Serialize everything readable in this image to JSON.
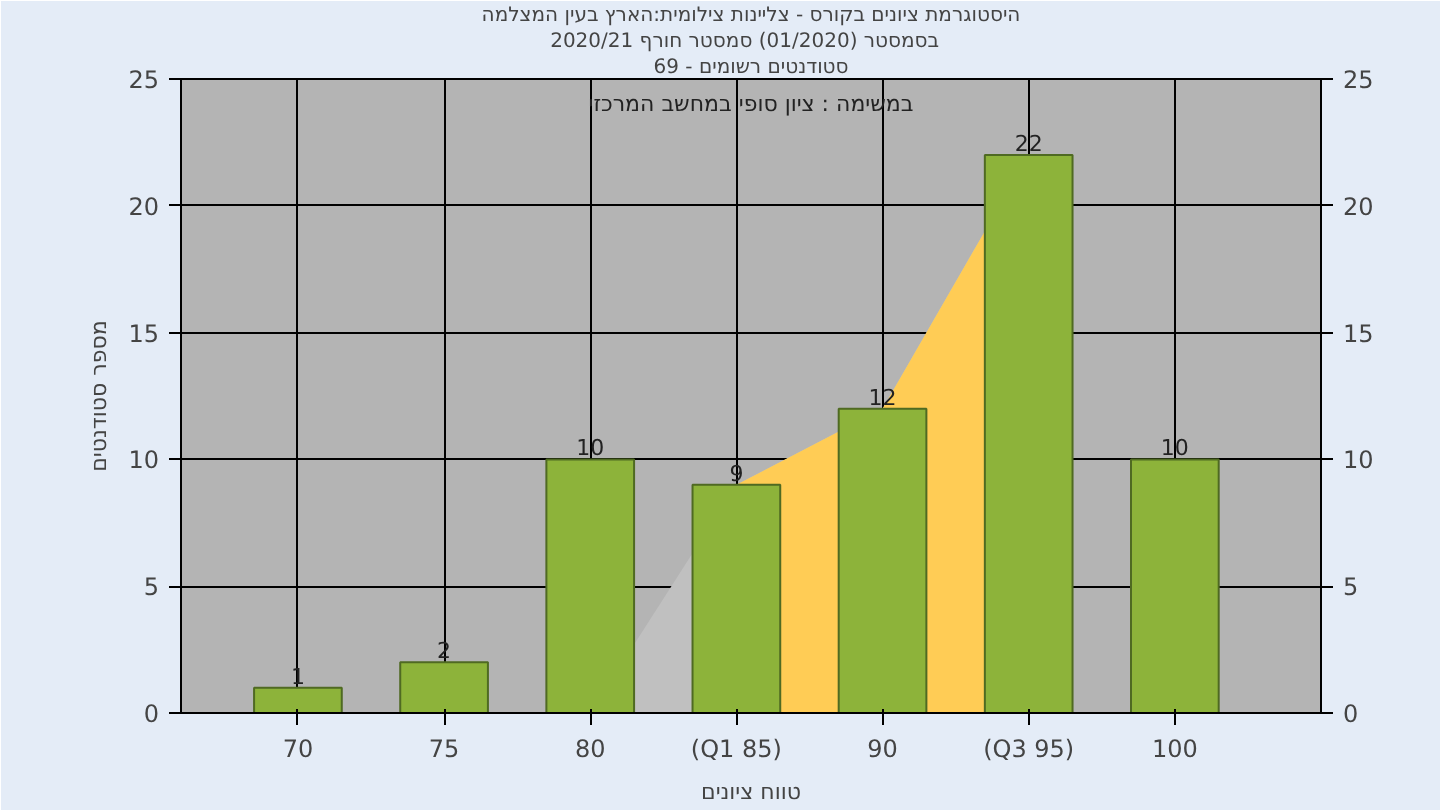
{
  "chart_data": {
    "type": "bar",
    "title": "היסטוגרמת ציונים בקורס - צליינות צילומית:הארץ בעין המצלמה",
    "subtitle": "בסמסטר  (01/2020)  סמסטר חורף 2020/21",
    "annotations": [
      "סטודנטים רשומים - 69",
      "במשימה : ציון סופי במחשב המרכזי"
    ],
    "xlabel": "טווח ציונים",
    "ylabel": "מספר סטודנטים",
    "categories": [
      "70",
      "75",
      "80",
      "(Q1 85)",
      "90",
      "(Q3 95)",
      "100"
    ],
    "series": [
      {
        "type": "area",
        "color": "#c0c0c0",
        "values": [
          null,
          null,
          0,
          9,
          12,
          22,
          null
        ]
      },
      {
        "type": "area",
        "color": "#ffcc55",
        "values": [
          null,
          null,
          null,
          9,
          12,
          22,
          null
        ]
      },
      {
        "color": "#8db33a",
        "values": [
          1,
          2,
          10,
          9,
          12,
          22,
          10
        ],
        "value_labels": [
          "1",
          "2",
          "10",
          "9",
          "12",
          "22",
          "10"
        ]
      }
    ],
    "ylim": [
      0,
      25
    ],
    "yticks": [
      0,
      5,
      10,
      15,
      20,
      25
    ],
    "y2lim": [
      0,
      25
    ],
    "y2ticks": [
      0,
      5,
      10,
      15,
      20,
      25
    ],
    "grid": true
  }
}
